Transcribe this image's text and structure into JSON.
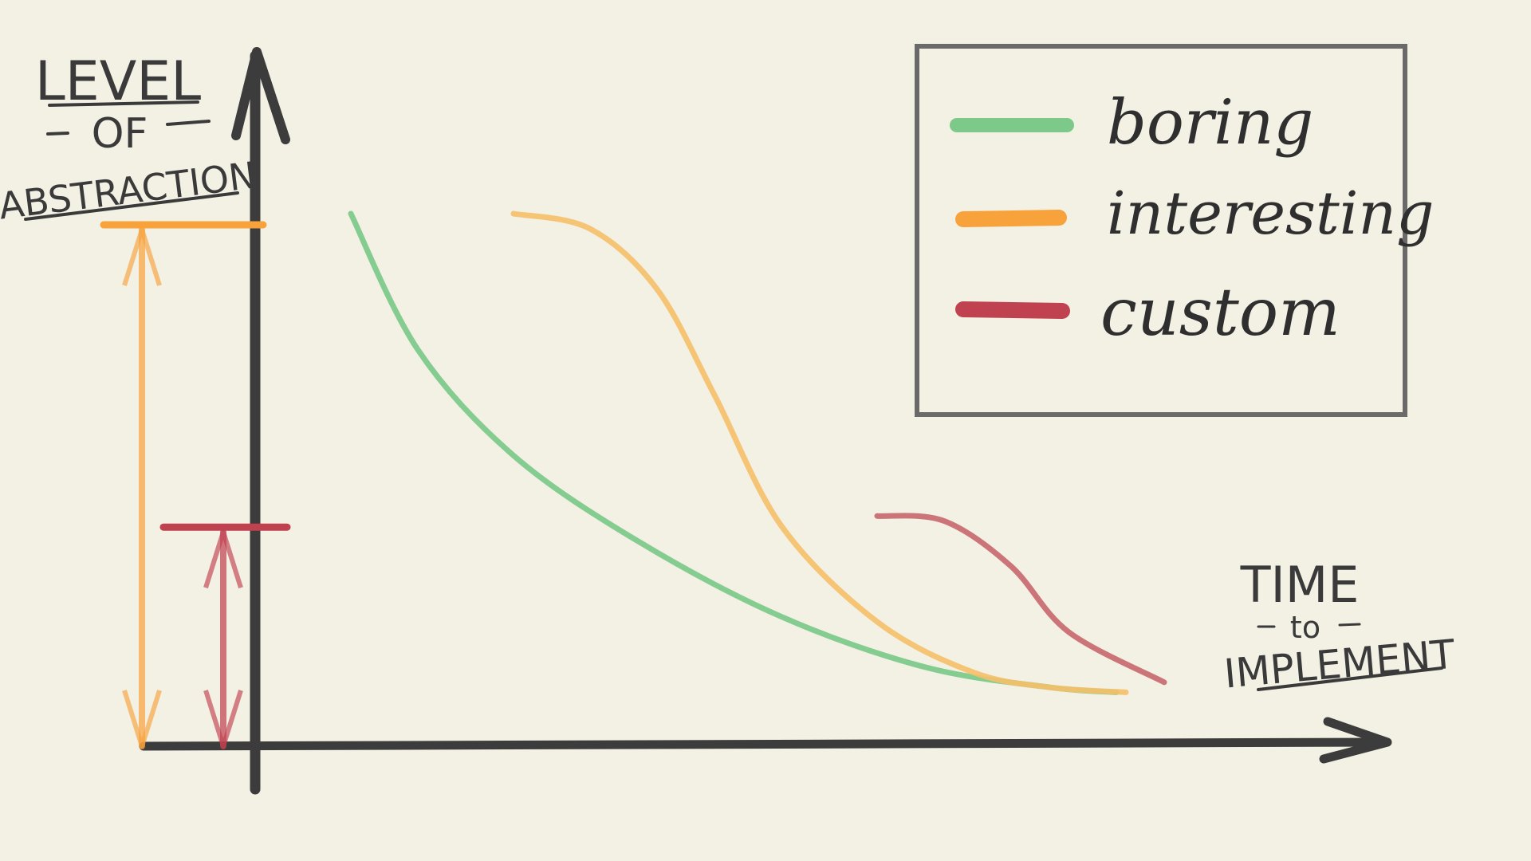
{
  "chart_data": {
    "type": "line",
    "y_axis_label": {
      "line1": "LEVEL",
      "line2": "OF",
      "line3": "ABSTRACTION"
    },
    "x_axis_label": {
      "line1": "TIME",
      "line2": "to",
      "line3": "IMPLEMENT"
    },
    "legend": {
      "placement": "top-right",
      "entries": [
        {
          "name": "boring",
          "color": "#7cc98a"
        },
        {
          "name": "interesting",
          "color": "#f8a23c"
        },
        {
          "name": "custom",
          "color": "#c0414f"
        }
      ]
    },
    "xlim": [
      0,
      100
    ],
    "ylim": [
      0,
      100
    ],
    "series": [
      {
        "name": "boring",
        "color": "#7cc98a",
        "x": [
          5,
          12,
          22,
          35,
          50,
          65,
          78,
          85
        ],
        "y": [
          100,
          73,
          52,
          35,
          20,
          10,
          6,
          5
        ]
      },
      {
        "name": "interesting",
        "color": "#f5c06a",
        "x": [
          22,
          30,
          37,
          43,
          50,
          60,
          70,
          78,
          86
        ],
        "y": [
          100,
          97,
          85,
          64,
          38,
          19,
          9,
          6,
          5
        ]
      },
      {
        "name": "custom",
        "color": "#c96a70",
        "x": [
          60,
          67,
          74,
          80,
          90
        ],
        "y": [
          40,
          39,
          30,
          17,
          7
        ]
      }
    ],
    "ranges": [
      {
        "name": "interesting-range",
        "color": "#f8a23c",
        "from": 0,
        "to": 100
      },
      {
        "name": "custom-range",
        "color": "#c0414f",
        "from": 0,
        "to": 40
      }
    ]
  }
}
